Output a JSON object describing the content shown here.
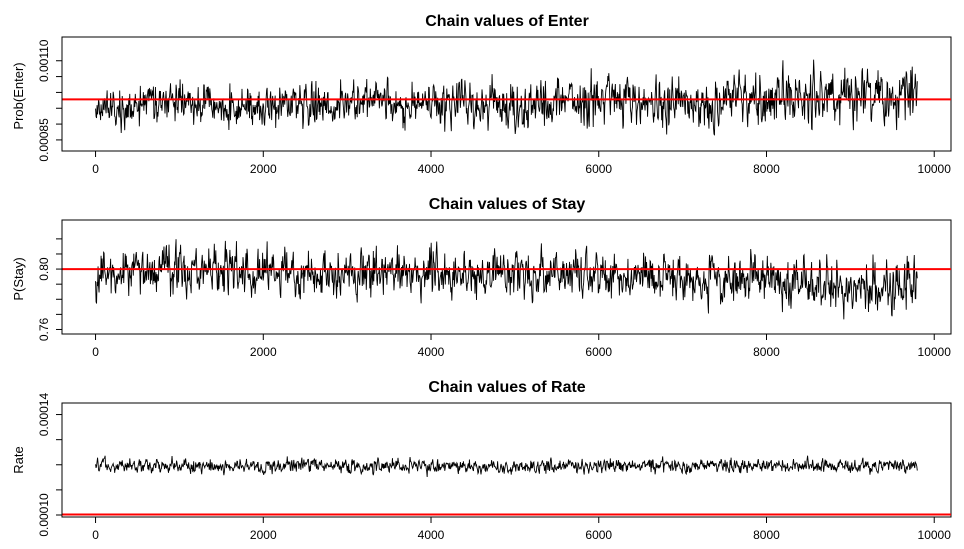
{
  "colors": {
    "trace": "#000000",
    "reference_line": "#ff0000",
    "frame": "#000000",
    "background": "#ffffff"
  },
  "chart_data": [
    {
      "type": "line",
      "title": "Chain values of Enter",
      "xlabel": "",
      "ylabel": "Prob(Enter)",
      "xlim": [
        -400,
        10200
      ],
      "ylim": [
        0.000815,
        0.001175
      ],
      "x_ticks": [
        0,
        2000,
        4000,
        6000,
        8000,
        10000
      ],
      "y_ticks": [
        0.00085,
        0.0009,
        0.00095,
        0.001,
        0.00105,
        0.0011
      ],
      "y_tick_labels": [
        "0.00085",
        "",
        "",
        "",
        "",
        "0.00110"
      ],
      "n_samples": 9800,
      "trace_series": {
        "x": [
          0,
          1000,
          2000,
          3000,
          4000,
          5000,
          6000,
          7000,
          8000,
          9000,
          9800
        ],
        "mean": [
          0.000955,
          0.00096,
          0.000958,
          0.000962,
          0.00096,
          0.000965,
          0.000968,
          0.00097,
          0.000985,
          0.000995,
          0.000992
        ],
        "spread": [
          3e-05,
          3e-05,
          3e-05,
          3.2e-05,
          3.3e-05,
          3.5e-05,
          3.5e-05,
          3.7e-05,
          4e-05,
          4e-05,
          4e-05
        ]
      },
      "reference_line": {
        "y": 0.000978,
        "color": "#ff0000"
      },
      "grid": false,
      "legend": "none"
    },
    {
      "type": "line",
      "title": "Chain values of Stay",
      "xlabel": "",
      "ylabel": "P(Stay)",
      "xlim": [
        -400,
        10200
      ],
      "ylim": [
        0.757,
        0.8325
      ],
      "x_ticks": [
        0,
        2000,
        4000,
        6000,
        8000,
        10000
      ],
      "y_ticks": [
        0.76,
        0.77,
        0.78,
        0.79,
        0.8,
        0.81,
        0.82
      ],
      "y_tick_labels": [
        "0.76",
        "",
        "",
        "",
        "0.80",
        "",
        ""
      ],
      "n_samples": 9800,
      "trace_series": {
        "x": [
          0,
          1000,
          2000,
          3000,
          4000,
          5000,
          6000,
          7000,
          8000,
          9000,
          9800
        ],
        "mean": [
          0.798,
          0.8,
          0.799,
          0.797,
          0.797,
          0.796,
          0.797,
          0.795,
          0.792,
          0.789,
          0.788
        ],
        "spread": [
          0.007,
          0.0075,
          0.007,
          0.007,
          0.007,
          0.007,
          0.007,
          0.007,
          0.0072,
          0.0075,
          0.0075
        ]
      },
      "reference_line": {
        "y": 0.8,
        "color": "#ff0000"
      },
      "grid": false,
      "legend": "none"
    },
    {
      "type": "line",
      "title": "Chain values of Rate",
      "xlabel": "",
      "ylabel": "Rate",
      "xlim": [
        -400,
        10200
      ],
      "ylim": [
        9.92e-05,
        0.0001446
      ],
      "x_ticks": [
        0,
        2000,
        4000,
        6000,
        8000,
        10000
      ],
      "y_ticks": [
        0.0001,
        0.00011,
        0.00012,
        0.00013,
        0.00014
      ],
      "y_tick_labels": [
        "0.00010",
        "",
        "",
        "",
        "0.00014"
      ],
      "n_samples": 9800,
      "trace_series": {
        "x": [
          0,
          2000,
          4000,
          6000,
          8000,
          9800
        ],
        "mean": [
          0.0001195,
          0.0001195,
          0.0001195,
          0.0001195,
          0.0001195,
          0.0001195
        ],
        "spread": [
          1.3e-06,
          1.3e-06,
          1.3e-06,
          1.3e-06,
          1.3e-06,
          1.3e-06
        ]
      },
      "reference_line": {
        "y": 0.0001002,
        "color": "#ff0000"
      },
      "grid": false,
      "legend": "none"
    }
  ]
}
